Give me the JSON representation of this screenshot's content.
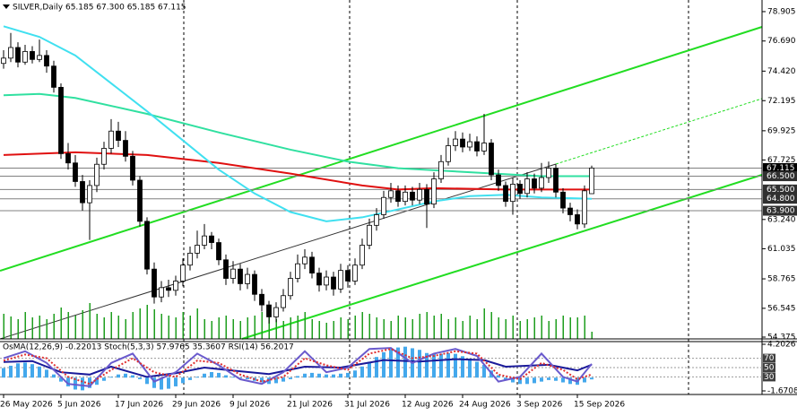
{
  "chart_data": {
    "type": "candlestick",
    "title": "SILVER,Daily  65.185 67.300 65.185 67.115",
    "categories": [
      "26 May 2026",
      null,
      null,
      null,
      null,
      null,
      null,
      null,
      "5 Jun 2026",
      null,
      null,
      null,
      null,
      null,
      null,
      null,
      "17 Jun 2026",
      null,
      null,
      null,
      null,
      null,
      null,
      null,
      "29 Jun 2026",
      null,
      null,
      null,
      null,
      null,
      null,
      null,
      "9 Jul 2026",
      null,
      null,
      null,
      null,
      null,
      null,
      null,
      "21 Jul 2026",
      null,
      null,
      null,
      null,
      null,
      null,
      null,
      "31 Jul 2026",
      null,
      null,
      null,
      null,
      null,
      null,
      null,
      "12 Aug 2026",
      null,
      null,
      null,
      null,
      null,
      null,
      null,
      "24 Aug 2026",
      null,
      null,
      null,
      null,
      null,
      null,
      null,
      "3 Sep 2026",
      null,
      null,
      null,
      null,
      null,
      null,
      null,
      "15 Sep 2026",
      null,
      null
    ],
    "ohlc": [
      [
        75.0,
        76.0,
        74.6,
        75.4
      ],
      [
        75.4,
        77.3,
        75.1,
        76.2
      ],
      [
        76.2,
        76.6,
        74.7,
        75.1
      ],
      [
        75.1,
        76.4,
        74.9,
        75.9
      ],
      [
        75.9,
        76.3,
        75.0,
        75.3
      ],
      [
        75.3,
        76.8,
        75.1,
        75.6
      ],
      [
        75.6,
        76.0,
        74.3,
        74.8
      ],
      [
        74.8,
        75.2,
        72.8,
        73.2
      ],
      [
        73.2,
        73.5,
        67.8,
        68.2
      ],
      [
        68.2,
        69.0,
        67.0,
        67.5
      ],
      [
        67.5,
        68.1,
        65.7,
        66.1
      ],
      [
        66.1,
        66.6,
        63.9,
        64.5
      ],
      [
        64.5,
        66.2,
        61.7,
        65.8
      ],
      [
        65.8,
        67.9,
        65.3,
        67.4
      ],
      [
        67.4,
        69.1,
        67.0,
        68.6
      ],
      [
        68.6,
        70.8,
        68.2,
        69.9
      ],
      [
        69.9,
        70.6,
        68.7,
        69.2
      ],
      [
        69.2,
        69.9,
        67.6,
        68.0
      ],
      [
        68.0,
        68.4,
        65.8,
        66.2
      ],
      [
        66.2,
        66.5,
        62.7,
        63.1
      ],
      [
        63.1,
        63.4,
        59.1,
        59.5
      ],
      [
        59.5,
        60.0,
        56.9,
        57.4
      ],
      [
        57.4,
        58.6,
        57.0,
        58.1
      ],
      [
        58.1,
        58.7,
        57.4,
        57.9
      ],
      [
        57.9,
        59.0,
        57.5,
        58.6
      ],
      [
        58.6,
        60.3,
        58.2,
        59.8
      ],
      [
        59.8,
        61.2,
        59.4,
        60.7
      ],
      [
        60.7,
        62.4,
        60.3,
        61.3
      ],
      [
        61.3,
        62.9,
        61.0,
        62.0
      ],
      [
        62.0,
        62.3,
        61.0,
        61.5
      ],
      [
        61.5,
        61.8,
        59.8,
        60.2
      ],
      [
        60.2,
        60.6,
        58.3,
        58.8
      ],
      [
        58.8,
        60.1,
        58.4,
        59.5
      ],
      [
        59.5,
        59.9,
        57.9,
        58.4
      ],
      [
        58.4,
        59.6,
        58.0,
        59.1
      ],
      [
        59.1,
        59.4,
        57.1,
        57.6
      ],
      [
        57.6,
        58.0,
        56.3,
        56.8
      ],
      [
        56.8,
        57.1,
        55.4,
        55.9
      ],
      [
        55.9,
        57.0,
        55.5,
        56.6
      ],
      [
        56.6,
        58.0,
        56.3,
        57.5
      ],
      [
        57.5,
        59.3,
        57.2,
        58.8
      ],
      [
        58.8,
        60.6,
        58.5,
        59.9
      ],
      [
        59.9,
        61.0,
        59.5,
        60.4
      ],
      [
        60.4,
        60.8,
        58.8,
        59.2
      ],
      [
        59.2,
        59.6,
        57.8,
        58.3
      ],
      [
        58.3,
        59.4,
        57.9,
        58.9
      ],
      [
        58.9,
        59.3,
        57.5,
        58.0
      ],
      [
        58.0,
        59.9,
        57.7,
        59.4
      ],
      [
        59.4,
        59.8,
        58.1,
        58.6
      ],
      [
        58.6,
        60.3,
        58.3,
        59.8
      ],
      [
        59.8,
        61.8,
        59.5,
        61.3
      ],
      [
        61.3,
        63.3,
        61.0,
        62.8
      ],
      [
        62.8,
        64.1,
        62.4,
        63.6
      ],
      [
        63.6,
        65.4,
        63.3,
        64.9
      ],
      [
        64.9,
        66.0,
        64.5,
        65.4
      ],
      [
        65.4,
        65.8,
        64.2,
        64.6
      ],
      [
        64.6,
        65.8,
        64.3,
        65.3
      ],
      [
        65.3,
        65.7,
        64.3,
        64.7
      ],
      [
        64.7,
        66.0,
        64.4,
        65.5
      ],
      [
        65.5,
        65.9,
        62.6,
        64.4
      ],
      [
        64.4,
        66.8,
        64.1,
        66.3
      ],
      [
        66.3,
        68.1,
        66.0,
        67.6
      ],
      [
        67.6,
        69.4,
        67.3,
        68.8
      ],
      [
        68.8,
        69.9,
        68.4,
        69.3
      ],
      [
        69.3,
        69.8,
        68.3,
        68.7
      ],
      [
        68.7,
        69.7,
        68.4,
        69.1
      ],
      [
        69.1,
        69.5,
        68.0,
        68.4
      ],
      [
        68.4,
        71.2,
        68.1,
        69.0
      ],
      [
        69.0,
        69.3,
        66.2,
        66.6
      ],
      [
        66.6,
        67.0,
        65.4,
        65.8
      ],
      [
        65.8,
        66.1,
        64.2,
        64.6
      ],
      [
        64.6,
        66.4,
        63.6,
        65.9
      ],
      [
        65.9,
        66.2,
        64.8,
        65.2
      ],
      [
        65.2,
        66.8,
        64.9,
        66.3
      ],
      [
        66.3,
        66.7,
        65.2,
        65.6
      ],
      [
        65.6,
        67.5,
        65.3,
        66.4
      ],
      [
        66.4,
        67.6,
        66.0,
        67.1
      ],
      [
        67.1,
        67.4,
        64.9,
        65.3
      ],
      [
        65.3,
        65.6,
        63.7,
        64.1
      ],
      [
        64.1,
        64.5,
        63.1,
        63.6
      ],
      [
        63.6,
        64.0,
        62.5,
        62.9
      ],
      [
        62.9,
        65.8,
        62.6,
        65.4
      ],
      [
        65.185,
        67.3,
        65.185,
        67.115
      ]
    ],
    "volume": [
      28,
      25,
      22,
      30,
      24,
      26,
      22,
      28,
      35,
      30,
      26,
      32,
      40,
      28,
      24,
      30,
      26,
      22,
      30,
      34,
      38,
      33,
      28,
      26,
      24,
      30,
      26,
      34,
      22,
      20,
      24,
      26,
      22,
      20,
      24,
      26,
      30,
      28,
      22,
      20,
      24,
      26,
      30,
      22,
      20,
      18,
      20,
      24,
      22,
      26,
      30,
      28,
      24,
      22,
      20,
      26,
      24,
      22,
      28,
      30,
      26,
      28,
      22,
      24,
      20,
      26,
      22,
      34,
      30,
      24,
      22,
      26,
      20,
      22,
      24,
      26,
      20,
      22,
      26,
      24,
      24,
      26,
      8
    ],
    "volume_color": "#1e9e1e",
    "up_color": "#ffffff",
    "down_color": "#000000",
    "ylim": [
      54.24,
      79.78
    ],
    "yticks": [
      78.905,
      {
        "value": 76.69,
        "label": "76.690"
      },
      {
        "value": 74.42,
        "label": "74.420"
      },
      72.195,
      69.925,
      67.725,
      {
        "value": 63.24,
        "label": "63.240"
      },
      61.035,
      58.765,
      56.545,
      54.375
    ],
    "levels": [
      67.115,
      {
        "value": 66.5,
        "label": "66.500"
      },
      {
        "value": 65.5,
        "label": "65.500"
      },
      {
        "value": 64.8,
        "label": "64.800"
      },
      {
        "value": 63.9,
        "label": "63.900"
      }
    ],
    "lines": [
      {
        "color": "#e01010",
        "x": [
          0,
          10,
          20,
          30,
          40,
          50,
          55,
          60,
          70,
          82
        ],
        "values": [
          68.1,
          68.3,
          68.1,
          67.5,
          66.7,
          65.8,
          65.5,
          65.6,
          65.5,
          65.5
        ]
      },
      {
        "color": "#30e0a0",
        "x": [
          0,
          5,
          10,
          20,
          30,
          40,
          48,
          55,
          65,
          75,
          82
        ],
        "values": [
          72.6,
          72.7,
          72.4,
          71.2,
          69.8,
          68.5,
          67.6,
          67.1,
          66.8,
          66.5,
          66.5
        ]
      },
      {
        "color": "#40e0f0",
        "x": [
          0,
          5,
          10,
          15,
          20,
          25,
          30,
          35,
          40,
          45,
          50,
          55,
          60,
          65,
          70,
          75,
          82
        ],
        "values": [
          77.8,
          77.0,
          75.6,
          73.5,
          71.4,
          69.2,
          67.0,
          65.2,
          63.8,
          63.1,
          63.4,
          64.0,
          64.6,
          65.0,
          65.1,
          64.9,
          64.8
        ]
      }
    ],
    "indicator": {
      "title": "OsMA(12,26,9) -0.22013 Stoch(5,3,3) 57.9765 35.3607 RSI(14) 56.2017",
      "osma": [
        1.2,
        1.5,
        1.8,
        1.9,
        1.7,
        1.4,
        1.0,
        0.4,
        -0.5,
        -1.1,
        -1.5,
        -1.6,
        -1.3,
        -0.9,
        -0.4,
        0.1,
        0.4,
        0.5,
        0.3,
        -0.2,
        -0.8,
        -1.3,
        -1.5,
        -1.4,
        -1.1,
        -0.7,
        -0.3,
        0.1,
        0.5,
        0.7,
        0.6,
        0.3,
        0.1,
        -0.1,
        -0.2,
        -0.4,
        -0.6,
        -0.8,
        -0.7,
        -0.5,
        -0.2,
        0.2,
        0.5,
        0.6,
        0.5,
        0.4,
        0.4,
        0.5,
        0.6,
        0.9,
        1.4,
        2.0,
        2.6,
        3.2,
        3.6,
        3.8,
        3.9,
        3.7,
        3.5,
        3.1,
        3.0,
        3.0,
        3.1,
        3.0,
        2.7,
        2.4,
        2.0,
        1.6,
        0.9,
        0.3,
        -0.3,
        -0.6,
        -0.8,
        -0.8,
        -0.7,
        -0.5,
        -0.3,
        -0.4,
        -0.6,
        -0.8,
        -0.9,
        -0.6,
        -0.22
      ],
      "osma_color": "#44a8ec",
      "osma_lim": [
        -1.67084,
        4.2026
      ],
      "osma_ticks": [
        4.2026,
        -1.67084
      ],
      "osc_lim": [
        0,
        100
      ],
      "osc_levels": [
        70,
        50,
        30
      ],
      "osc_lines": [
        {
          "color": "#1a1a9a",
          "x": [
            0,
            4,
            8,
            12,
            15,
            20,
            24,
            28,
            33,
            37,
            42,
            47,
            53,
            58,
            63,
            67,
            70,
            76,
            80,
            82
          ],
          "values": [
            62,
            64,
            40,
            35,
            52,
            30,
            38,
            50,
            42,
            36,
            52,
            50,
            66,
            63,
            68,
            66,
            52,
            56,
            44,
            56.2017
          ]
        },
        {
          "color": "#6a5acd",
          "x": [
            0,
            3,
            6,
            9,
            12,
            15,
            18,
            21,
            24,
            27,
            30,
            33,
            36,
            39,
            42,
            45,
            48,
            51,
            54,
            57,
            60,
            63,
            66,
            69,
            72,
            75,
            78,
            80,
            82
          ],
          "values": [
            70,
            85,
            60,
            15,
            10,
            60,
            80,
            20,
            40,
            80,
            55,
            25,
            15,
            40,
            85,
            40,
            50,
            90,
            92,
            60,
            80,
            90,
            75,
            20,
            30,
            80,
            30,
            20,
            57.9765
          ]
        },
        {
          "color": "#e03030",
          "x": [
            0,
            3,
            6,
            9,
            12,
            15,
            18,
            21,
            24,
            27,
            30,
            33,
            36,
            39,
            42,
            45,
            48,
            51,
            54,
            57,
            60,
            63,
            66,
            69,
            72,
            75,
            78,
            80,
            82
          ],
          "values": [
            65,
            78,
            70,
            30,
            15,
            45,
            70,
            40,
            30,
            65,
            60,
            35,
            20,
            30,
            70,
            55,
            45,
            80,
            90,
            70,
            75,
            85,
            80,
            35,
            25,
            60,
            45,
            25,
            35.3607
          ]
        }
      ]
    }
  }
}
